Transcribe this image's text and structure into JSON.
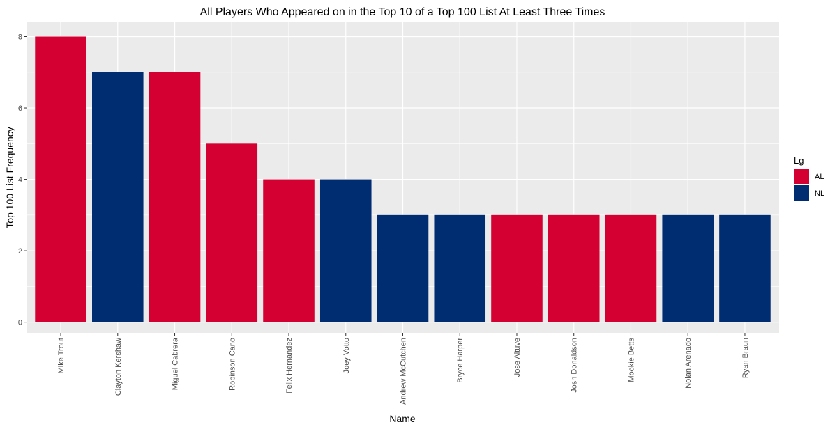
{
  "chart_data": {
    "type": "bar",
    "title": "All Players Who Appeared on in the Top 10 of a Top 100 List At Least Three Times",
    "xlabel": "Name",
    "ylabel": "Top 100 List Frequency",
    "categories": [
      "Mike Trout",
      "Clayton Kershaw",
      "Miguel Cabrera",
      "Robinson Cano",
      "Felix Hernandez",
      "Joey Votto",
      "Andrew McCutchen",
      "Bryce Harper",
      "Jose Altuve",
      "Josh Donaldson",
      "Mookie Betts",
      "Nolan Arenado",
      "Ryan Braun"
    ],
    "values": [
      8,
      7,
      7,
      5,
      4,
      4,
      3,
      3,
      3,
      3,
      3,
      3,
      3
    ],
    "league": [
      "AL",
      "NL",
      "AL",
      "AL",
      "AL",
      "NL",
      "NL",
      "NL",
      "AL",
      "AL",
      "AL",
      "NL",
      "NL"
    ],
    "ylim": [
      -0.3,
      8.4
    ],
    "yticks": [
      0,
      2,
      4,
      6,
      8
    ],
    "grid": true,
    "legend": {
      "title": "Lg",
      "position": "right",
      "items": [
        {
          "label": "AL",
          "color": "#D50032"
        },
        {
          "label": "NL",
          "color": "#002D72"
        }
      ]
    },
    "panel_background": "#EBEBEB",
    "grid_color": "#FFFFFF"
  }
}
